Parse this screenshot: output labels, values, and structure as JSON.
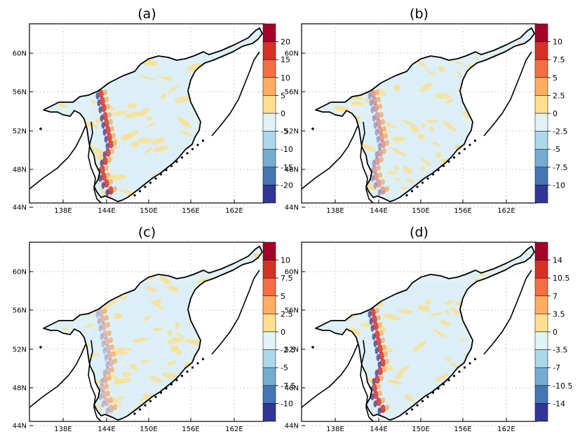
{
  "panels": [
    {
      "label": "(a)",
      "colorbar_ticks": [
        "20",
        "15",
        "10",
        "5",
        "0",
        "-5",
        "-10",
        "-15",
        "-20"
      ]
    },
    {
      "label": "(b)",
      "colorbar_ticks": [
        "10",
        "7.5",
        "5",
        "2.5",
        "0",
        "-2.5",
        "-5",
        "-7.5",
        "-10"
      ]
    },
    {
      "label": "(c)",
      "colorbar_ticks": [
        "10",
        "7.5",
        "5",
        "2.5",
        "0",
        "-2.5",
        "-5",
        "-7.5",
        "-10"
      ]
    },
    {
      "label": "(d)",
      "colorbar_ticks": [
        "14",
        "10.5",
        "7",
        "3.5",
        "0",
        "-3.5",
        "-7",
        "-10.5",
        "-14"
      ]
    }
  ],
  "axes": {
    "lon_ticks": [
      "138E",
      "144E",
      "150E",
      "156E",
      "162E"
    ],
    "lat_ticks": [
      "60N",
      "56N",
      "52N",
      "48N",
      "44N"
    ]
  },
  "colorbar_colors": [
    "#a50026",
    "#d73027",
    "#f46d43",
    "#fdae61",
    "#fee090",
    "#e0f3f8",
    "#abd9e9",
    "#74add1",
    "#4575b4",
    "#313695"
  ]
}
